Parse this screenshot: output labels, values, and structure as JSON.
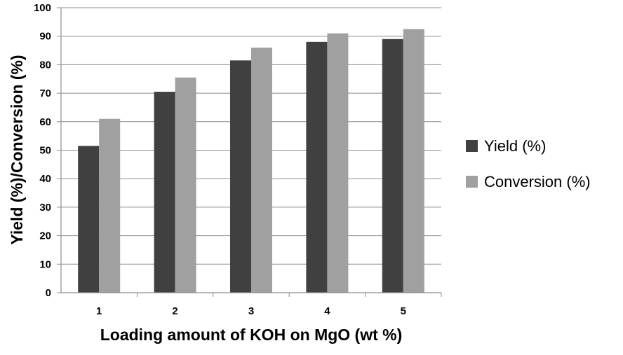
{
  "chart_data": {
    "type": "bar",
    "categories": [
      "1",
      "2",
      "3",
      "4",
      "5"
    ],
    "series": [
      {
        "name": "Yield (%)",
        "values": [
          51.5,
          70.5,
          81.5,
          88,
          89
        ],
        "color": "#404040"
      },
      {
        "name": "Conversion (%)",
        "values": [
          61,
          75.5,
          86,
          91,
          92.5
        ],
        "color": "#a0a0a0"
      }
    ],
    "title": "",
    "xlabel": "Loading amount of KOH on MgO (wt %)",
    "ylabel": "Yield (%)/Conversion (%)",
    "ylim": [
      0,
      100
    ],
    "yticks": [
      "0",
      "10",
      "20",
      "30",
      "40",
      "50",
      "60",
      "70",
      "80",
      "90",
      "100"
    ],
    "grid": "horizontal",
    "legend_position": "right"
  }
}
